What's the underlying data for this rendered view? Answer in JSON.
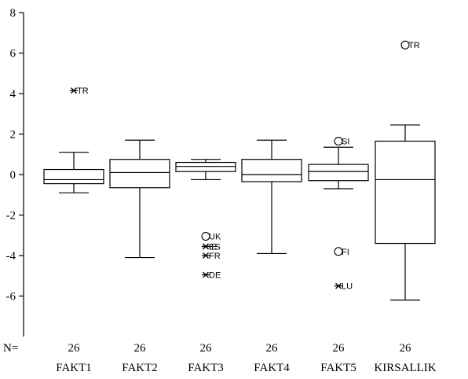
{
  "chart_data": {
    "type": "boxplot",
    "title": "",
    "xlabel": "",
    "ylabel": "",
    "ylim": [
      -8,
      8
    ],
    "yticks": [
      -6,
      -4,
      -2,
      0,
      2,
      4,
      6,
      8
    ],
    "n_label": "N=",
    "categories": [
      "FAKT1",
      "FAKT2",
      "FAKT3",
      "FAKT4",
      "FAKT5",
      "KIRSALLIK"
    ],
    "n_values": [
      "26",
      "26",
      "26",
      "26",
      "26",
      "26"
    ],
    "boxes": [
      {
        "name": "FAKT1",
        "whisker_low": -0.9,
        "q1": -0.45,
        "median": -0.25,
        "q3": 0.25,
        "whisker_high": 1.1,
        "outliers": [
          {
            "label": "TR",
            "value": 4.15,
            "marker": "star"
          }
        ]
      },
      {
        "name": "FAKT2",
        "whisker_low": -4.1,
        "q1": -0.65,
        "median": 0.1,
        "q3": 0.75,
        "whisker_high": 1.7,
        "outliers": []
      },
      {
        "name": "FAKT3",
        "whisker_low": -0.25,
        "q1": 0.15,
        "median": 0.4,
        "q3": 0.6,
        "whisker_high": 0.75,
        "outliers": [
          {
            "label": "UK",
            "value": -3.05,
            "marker": "circle"
          },
          {
            "label": "ES",
            "value": -3.55,
            "marker": "star"
          },
          {
            "label": "IE",
            "value": -3.55,
            "marker": "star"
          },
          {
            "label": "FR",
            "value": -4.0,
            "marker": "star"
          },
          {
            "label": "DE",
            "value": -4.95,
            "marker": "star"
          }
        ]
      },
      {
        "name": "FAKT4",
        "whisker_low": -3.9,
        "q1": -0.35,
        "median": 0.0,
        "q3": 0.75,
        "whisker_high": 1.7,
        "outliers": []
      },
      {
        "name": "FAKT5",
        "whisker_low": -0.7,
        "q1": -0.3,
        "median": 0.15,
        "q3": 0.5,
        "whisker_high": 1.35,
        "outliers": [
          {
            "label": "SI",
            "value": 1.65,
            "marker": "circle"
          },
          {
            "label": "FI",
            "value": -3.8,
            "marker": "circle"
          },
          {
            "label": "LU",
            "value": -5.5,
            "marker": "star"
          }
        ]
      },
      {
        "name": "KIRSALLIK",
        "whisker_low": -6.2,
        "q1": -3.4,
        "median": -0.25,
        "q3": 1.65,
        "whisker_high": 2.45,
        "outliers": [
          {
            "label": "TR",
            "value": 6.4,
            "marker": "circle"
          }
        ]
      }
    ],
    "grid": false,
    "legend": "none"
  }
}
